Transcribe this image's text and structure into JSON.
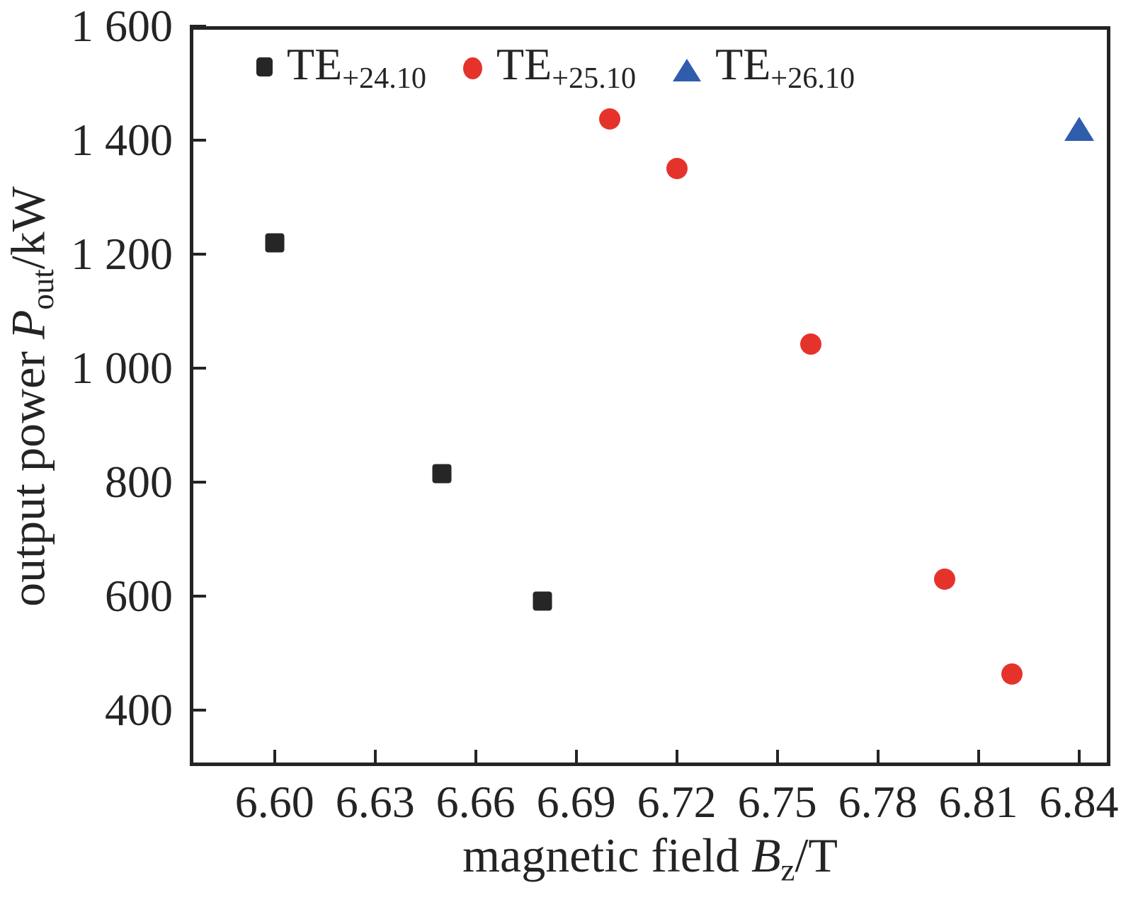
{
  "chart_data": {
    "type": "scatter",
    "xlabel_parts": {
      "prefix": "magnetic field ",
      "var": "B",
      "sub": "z",
      "suffix": "/T"
    },
    "ylabel_parts": {
      "prefix": "output power ",
      "var": "P",
      "sub": "out",
      "suffix": "/kW"
    },
    "xlim": [
      6.5747,
      6.8494
    ],
    "ylim": [
      302,
      1600
    ],
    "x_ticks": [
      6.6,
      6.63,
      6.66,
      6.69,
      6.72,
      6.75,
      6.78,
      6.81,
      6.84
    ],
    "x_tick_labels": [
      "6.60",
      "6.63",
      "6.66",
      "6.69",
      "6.72",
      "6.75",
      "6.78",
      "6.81",
      "6.84"
    ],
    "y_ticks": [
      1600,
      1400,
      1200,
      1000,
      800,
      600,
      400
    ],
    "y_tick_labels": [
      "1 600",
      "1 400",
      "1 200",
      "1 000",
      "800",
      "600",
      "400"
    ],
    "grid": false,
    "legend_position": "top-left-inside",
    "frame_color": "#242424",
    "background_color": "#ffffff",
    "series": [
      {
        "name": "TE+24.10",
        "label_main": "TE",
        "label_sub": "+24.10",
        "marker": "square",
        "color": "#262626",
        "points": [
          [
            6.6,
            1220
          ],
          [
            6.65,
            815
          ],
          [
            6.68,
            592
          ]
        ]
      },
      {
        "name": "TE+25.10",
        "label_main": "TE",
        "label_sub": "+25.10",
        "marker": "circle",
        "color": "#e5332c",
        "points": [
          [
            6.7,
            1437
          ],
          [
            6.72,
            1350
          ],
          [
            6.76,
            1042
          ],
          [
            6.8,
            630
          ],
          [
            6.82,
            463
          ]
        ]
      },
      {
        "name": "TE+26.10",
        "label_main": "TE",
        "label_sub": "+26.10",
        "marker": "triangle",
        "color": "#2f5cab",
        "points": [
          [
            6.84,
            1420
          ]
        ]
      }
    ]
  }
}
